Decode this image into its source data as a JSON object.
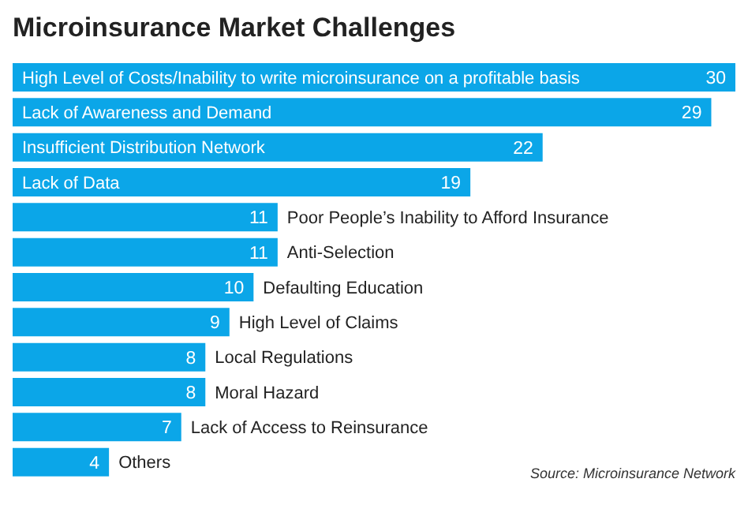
{
  "chart_data": {
    "type": "bar",
    "orientation": "horizontal",
    "title": "Microinsurance Market Challenges",
    "categories": [
      "High Level of Costs/Inability to write microinsurance on a profitable basis",
      "Lack of Awareness and Demand",
      "Insufficient Distribution Network",
      "Lack of Data",
      "Poor People’s Inability to Afford Insurance",
      "Anti-Selection",
      "Defaulting Education",
      "High Level of Claims",
      "Local Regulations",
      "Moral Hazard",
      "Lack of Access to Reinsurance",
      "Others"
    ],
    "values": [
      30,
      29,
      22,
      19,
      11,
      11,
      10,
      9,
      8,
      8,
      7,
      4
    ],
    "color": "#0ba6e8",
    "data_labels": true,
    "annotations": [
      "Source: Microinsurance Network"
    ]
  }
}
